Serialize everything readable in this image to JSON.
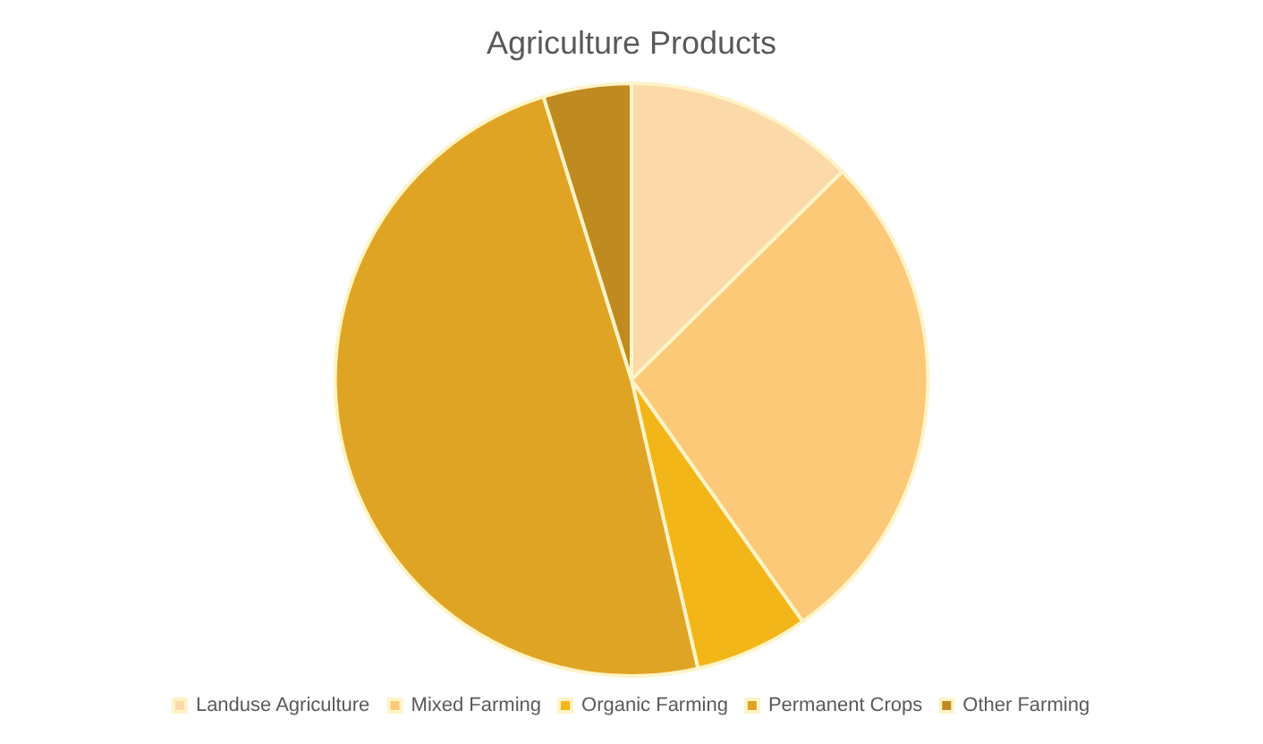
{
  "chart_data": {
    "type": "pie",
    "title": "Agriculture Products",
    "categories": [
      "Landuse Agriculture",
      "Mixed Farming",
      "Organic Farming",
      "Permanent Crops",
      "Other Farming"
    ],
    "values": [
      12.6,
      27.6,
      6.2,
      48.8,
      4.8
    ],
    "colors": [
      "#fbd9a8",
      "#fbc978",
      "#f3b619",
      "#e0a424",
      "#bf8a1f"
    ],
    "legend": "bottom"
  }
}
